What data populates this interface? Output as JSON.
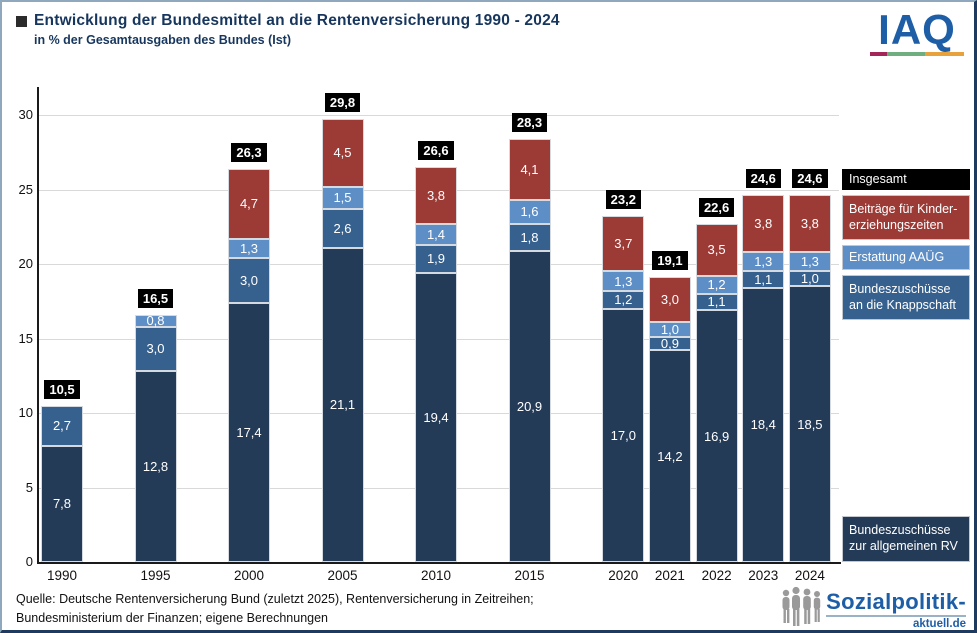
{
  "header": {
    "title": "Entwicklung der Bundesmittel an die Rentenversicherung 1990 - 2024",
    "subtitle": "in % der Gesamtausgaben des Bundes (Ist)"
  },
  "iaq_logo": {
    "text": "IAQ",
    "bar_colors": [
      "#a42558",
      "#6fae7e",
      "#e8a23b"
    ]
  },
  "chart_data": {
    "type": "bar",
    "stacked": true,
    "title": "Entwicklung der Bundesmittel an die Rentenversicherung 1990 - 2024",
    "subtitle": "in % der Gesamtausgaben des Bundes (Ist)",
    "categories": [
      "1990",
      "1995",
      "2000",
      "2005",
      "2010",
      "2015",
      "2020",
      "2021",
      "2022",
      "2023",
      "2024"
    ],
    "series": [
      {
        "name": "Bundeszuschüsse zur allgemeinen RV",
        "color": "#243b58",
        "values": [
          7.8,
          12.8,
          17.4,
          21.1,
          19.4,
          20.9,
          17.0,
          14.2,
          16.9,
          18.4,
          18.5
        ]
      },
      {
        "name": "Bundeszuschüsse an die Knappschaft",
        "color": "#36618e",
        "values": [
          2.7,
          3.0,
          3.0,
          2.6,
          1.9,
          1.8,
          1.2,
          0.9,
          1.1,
          1.1,
          1.0
        ]
      },
      {
        "name": "Erstattung AAÜG",
        "color": "#5d8fc6",
        "values": [
          null,
          0.8,
          1.3,
          1.5,
          1.4,
          1.6,
          1.3,
          1.0,
          1.2,
          1.3,
          1.3
        ]
      },
      {
        "name": "Beiträge für Kindererziehungszeiten",
        "color": "#9c3a36",
        "values": [
          null,
          null,
          4.7,
          4.5,
          3.8,
          4.1,
          3.7,
          3.0,
          3.5,
          3.8,
          3.8
        ]
      }
    ],
    "totals": [
      "10,5",
      "16,5",
      "26,3",
      "29,8",
      "26,6",
      "28,3",
      "23,2",
      "19,1",
      "22,6",
      "24,6",
      "24,6"
    ],
    "total_label_style": "black-box-white-text",
    "ylim": [
      0,
      32
    ],
    "yticks": [
      0,
      5,
      10,
      15,
      20,
      25,
      30
    ],
    "grid": "horizontal",
    "legend_position": "right",
    "value_label_color": "#ffffff"
  },
  "legend": {
    "insgesamt": "Insgesamt",
    "kinder": "Beiträge für Kinder-erziehungszeiten",
    "aaug": "Erstattung AAÜG",
    "knappschaft": "Bundeszuschüsse an die Knappschaft",
    "rv": "Bundeszuschüsse zur allgemeinen RV"
  },
  "colors": {
    "insgesamt_bg": "#000000",
    "kinder_bg": "#9c3a36",
    "aaug_bg": "#5d8fc6",
    "knappschaft_bg": "#36618e",
    "rv_bg": "#243b58",
    "title_text": "#17365d",
    "gridline": "#d9d9d9"
  },
  "footer": {
    "line1": "Quelle: Deutsche Rentenversicherung Bund (zuletzt 2025), Rentenversicherung in Zeitreihen;",
    "line2": "Bundesministerium der Finanzen; eigene Berechnungen"
  },
  "sozialpolitik_logo": {
    "title": "Sozialpolitik-",
    "domain": "aktuell.de"
  }
}
